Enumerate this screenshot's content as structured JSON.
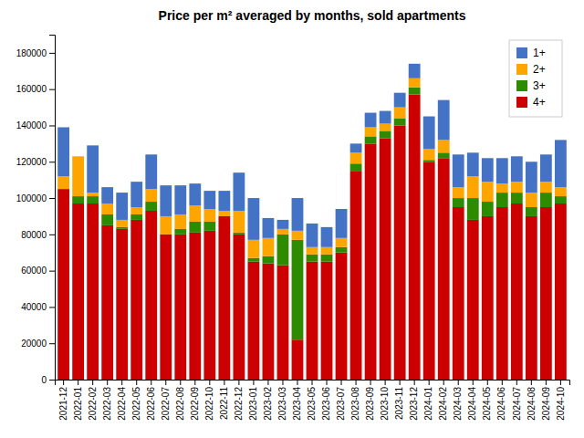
{
  "chart_data": {
    "type": "bar",
    "stacked": true,
    "title": "Price per m² averaged by months, sold apartments",
    "categories": [
      "2021-12",
      "2022-01",
      "2022-02",
      "2022-03",
      "2022-04",
      "2022-05",
      "2022-06",
      "2022-07",
      "2022-08",
      "2022-09",
      "2022-10",
      "2022-11",
      "2022-12",
      "2023-01",
      "2023-02",
      "2023-03",
      "2023-04",
      "2023-05",
      "2023-06",
      "2023-07",
      "2023-08",
      "2023-09",
      "2023-10",
      "2023-11",
      "2023-12",
      "2024-01",
      "2024-02",
      "2024-03",
      "2024-04",
      "2024-05",
      "2024-06",
      "2024-07",
      "2024-08",
      "2024-09",
      "2024-10"
    ],
    "series": [
      {
        "name": "4+",
        "color": "#CC0000",
        "values": [
          105000,
          97000,
          97000,
          85000,
          83000,
          88000,
          93000,
          80000,
          80000,
          81000,
          82000,
          90000,
          80000,
          65000,
          64000,
          63000,
          22000,
          65000,
          65000,
          70000,
          115000,
          130000,
          133000,
          140000,
          157000,
          120000,
          122000,
          95000,
          88000,
          90000,
          95000,
          97000,
          90000,
          95000,
          97000
        ]
      },
      {
        "name": "3+",
        "color": "#2E8B00",
        "values": [
          0,
          4000,
          4000,
          6000,
          1000,
          3000,
          5000,
          0,
          3000,
          6000,
          5000,
          0,
          1000,
          2000,
          4000,
          17000,
          55000,
          4000,
          4000,
          3000,
          4000,
          4000,
          4000,
          4000,
          4000,
          1000,
          3000,
          5000,
          12000,
          8000,
          8000,
          6000,
          5000,
          8000,
          4000
        ]
      },
      {
        "name": "2+",
        "color": "#FFA500",
        "values": [
          7000,
          22000,
          2000,
          6000,
          4000,
          4000,
          7000,
          10000,
          8000,
          9000,
          7000,
          3000,
          12000,
          10000,
          10000,
          3000,
          5000,
          4000,
          4000,
          5000,
          6000,
          5000,
          4000,
          6000,
          5000,
          6000,
          7000,
          6000,
          12000,
          11000,
          5000,
          6000,
          8000,
          6000,
          5000
        ]
      },
      {
        "name": "1+",
        "color": "#4472C4",
        "values": [
          27000,
          0,
          26000,
          9000,
          15000,
          14000,
          19000,
          17000,
          16000,
          12000,
          10000,
          11000,
          21000,
          23000,
          11000,
          5000,
          18000,
          13000,
          11000,
          16000,
          5000,
          8000,
          7000,
          8000,
          8000,
          18000,
          22000,
          18000,
          13000,
          13000,
          14000,
          14000,
          17000,
          15000,
          26000
        ]
      }
    ],
    "ylim": [
      0,
      190000
    ],
    "yticks": [
      0,
      20000,
      40000,
      60000,
      80000,
      100000,
      120000,
      140000,
      160000,
      180000
    ],
    "legend": "upper right",
    "grid": false
  }
}
